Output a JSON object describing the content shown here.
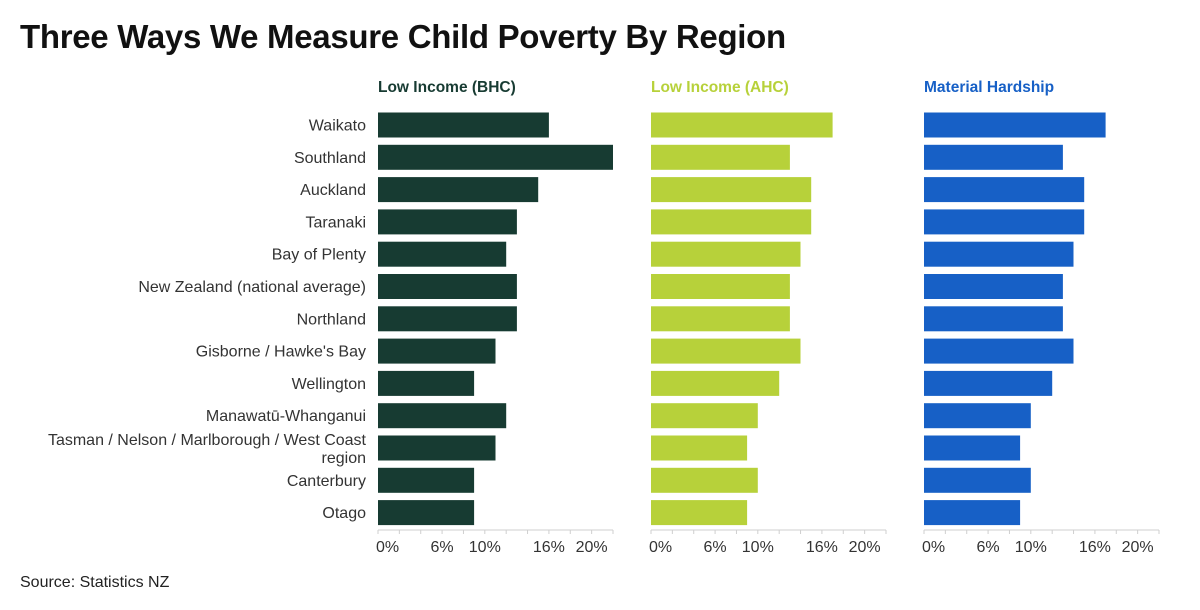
{
  "title": "Three Ways We Measure Child Poverty By Region",
  "source": "Source: Statistics NZ",
  "chart_data": {
    "type": "bar",
    "orientation": "horizontal",
    "title": "Three Ways We Measure Child Poverty By Region",
    "categories": [
      "Waikato",
      "Southland",
      "Auckland",
      "Taranaki",
      "Bay of Plenty",
      "New Zealand (national average)",
      "Northland",
      "Gisborne / Hawke's Bay",
      "Wellington",
      "Manawatū-Whanganui",
      "Tasman / Nelson / Marlborough / West Coast region",
      "Canterbury",
      "Otago"
    ],
    "xlim": [
      0,
      22
    ],
    "x_ticks": [
      0,
      6,
      10,
      16,
      20
    ],
    "x_tick_labels": [
      "0%",
      "6%",
      "10%",
      "16%",
      "20%"
    ],
    "series": [
      {
        "name": "Low Income (BHC)",
        "color": "#173b32",
        "values": [
          16,
          22,
          15,
          13,
          12,
          13,
          13,
          11,
          9,
          12,
          11,
          9,
          9
        ]
      },
      {
        "name": "Low Income (AHC)",
        "color": "#b7d13a",
        "values": [
          17,
          13,
          15,
          15,
          14,
          13,
          13,
          14,
          12,
          10,
          9,
          10,
          9
        ]
      },
      {
        "name": "Material Hardship",
        "color": "#1760c6",
        "values": [
          17,
          13,
          15,
          15,
          14,
          13,
          13,
          14,
          12,
          10,
          9,
          10,
          9
        ]
      }
    ]
  }
}
